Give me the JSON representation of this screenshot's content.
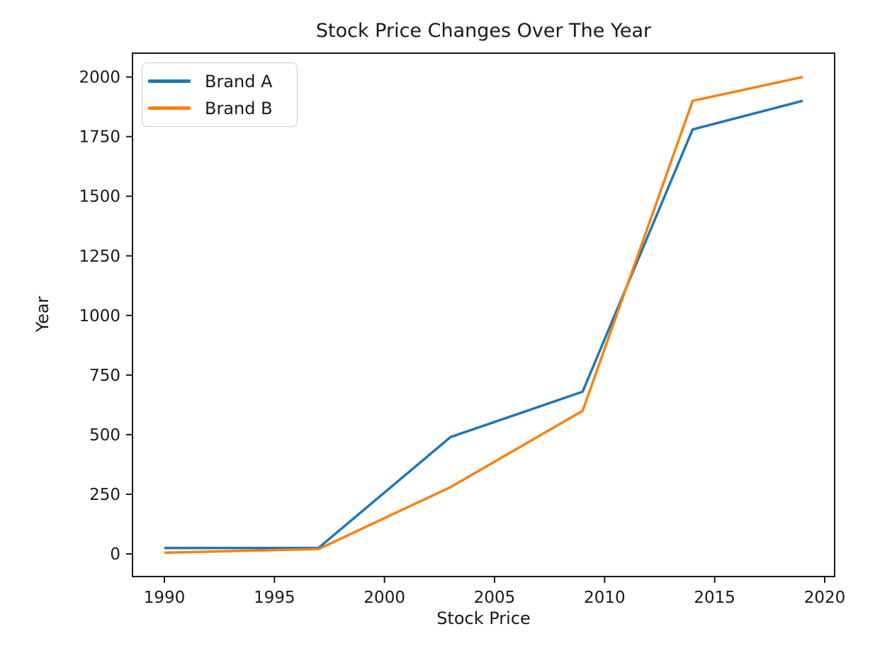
{
  "chart_data": {
    "type": "line",
    "title": "Stock Price Changes Over The Year",
    "xlabel": "Stock Price",
    "ylabel": "Year",
    "x": [
      1990,
      1997,
      2003,
      2009,
      2014,
      2019
    ],
    "series": [
      {
        "name": "Brand A",
        "color": "#1f77b4",
        "values": [
          25,
          25,
          490,
          680,
          1780,
          1900
        ]
      },
      {
        "name": "Brand B",
        "color": "#ff7f0e",
        "values": [
          5,
          20,
          280,
          600,
          1900,
          2000
        ]
      }
    ],
    "x_ticks": [
      1990,
      1995,
      2000,
      2005,
      2010,
      2015,
      2020
    ],
    "y_ticks": [
      0,
      250,
      500,
      750,
      1000,
      1250,
      1500,
      1750,
      2000
    ],
    "xlim": [
      1988.55,
      2020.45
    ],
    "ylim": [
      -95,
      2100
    ],
    "grid": false,
    "legend_position": "upper left",
    "axis_color": "#1a1a1a",
    "background_color": "#ffffff"
  }
}
